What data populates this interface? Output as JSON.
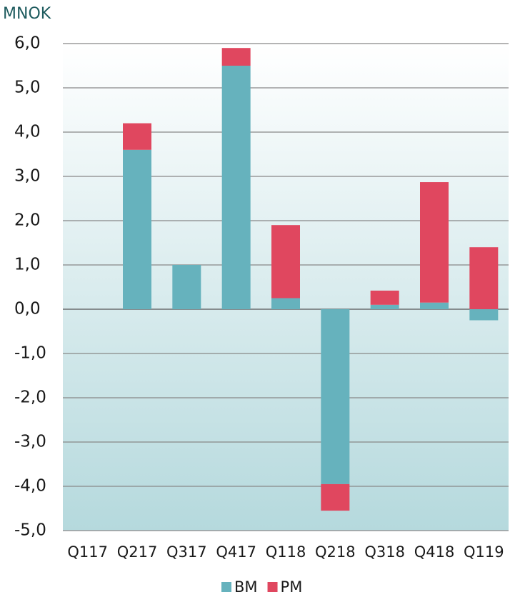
{
  "chart_data": {
    "type": "stacked_bar",
    "title": "MNOK",
    "categories": [
      "Q117",
      "Q217",
      "Q317",
      "Q417",
      "Q118",
      "Q218",
      "Q318",
      "Q418",
      "Q119"
    ],
    "series": [
      {
        "name": "BM",
        "color": "#66b2bd",
        "values": [
          0,
          3.6,
          1.0,
          5.5,
          0.25,
          -3.95,
          0.1,
          0.15,
          -0.25
        ]
      },
      {
        "name": "PM",
        "color": "#e0475f",
        "values": [
          0,
          0.6,
          0,
          0.4,
          1.65,
          -0.6,
          0.32,
          2.72,
          1.4
        ]
      }
    ],
    "ylim": [
      -5,
      6
    ],
    "yticks": [
      {
        "value": -5,
        "label": "-5,0"
      },
      {
        "value": -4,
        "label": "-4,0"
      },
      {
        "value": -3,
        "label": "-3,0"
      },
      {
        "value": -2,
        "label": "-2,0"
      },
      {
        "value": -1,
        "label": "-1,0"
      },
      {
        "value": 0,
        "label": "0,0"
      },
      {
        "value": 1,
        "label": "1,0"
      },
      {
        "value": 2,
        "label": "2,0"
      },
      {
        "value": 3,
        "label": "3,0"
      },
      {
        "value": 4,
        "label": "4,0"
      },
      {
        "value": 5,
        "label": "5,0"
      },
      {
        "value": 6,
        "label": "6,0"
      }
    ],
    "grid": true,
    "legend": "bottom"
  }
}
